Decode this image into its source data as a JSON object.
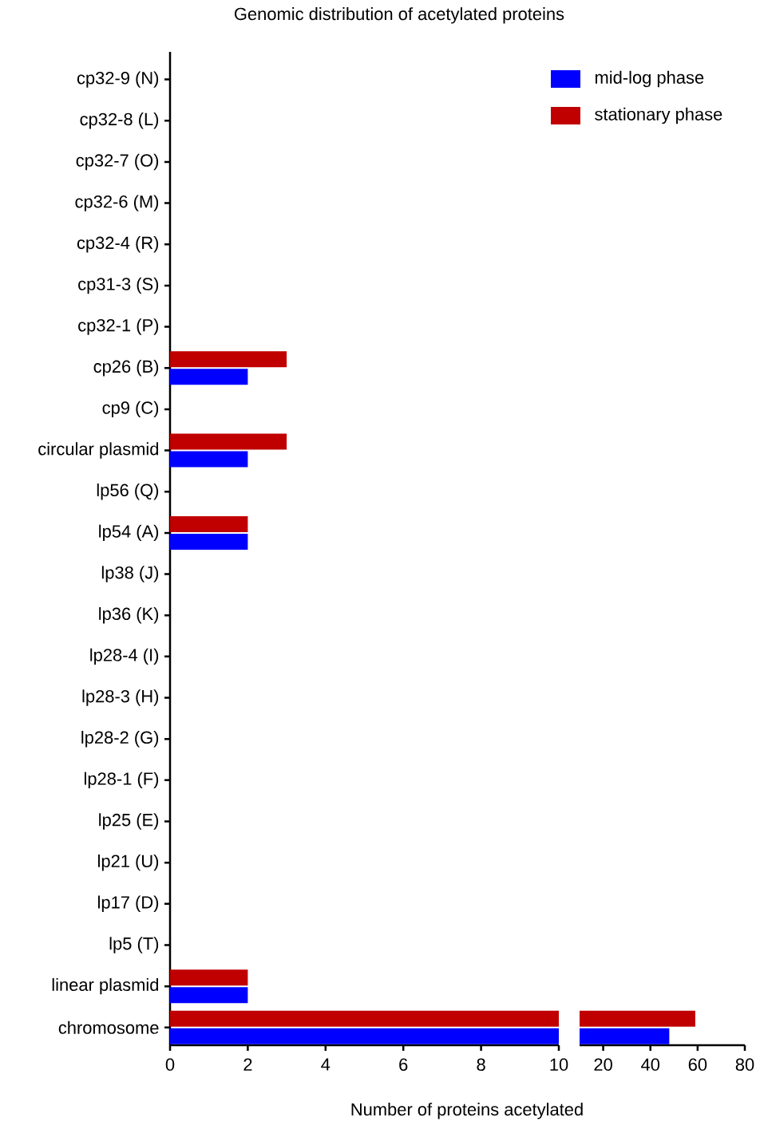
{
  "chart_data": [
    {
      "type": "bar",
      "orientation": "horizontal",
      "title": "Genomic distribution of acetylated proteins",
      "xlabel": "Number of proteins acetylated",
      "legend": "top right",
      "categories": [
        "cp32-9 (N)",
        "cp32-8 (L)",
        "cp32-7 (O)",
        "cp32-6 (M)",
        "cp32-4 (R)",
        "cp31-3 (S)",
        "cp32-1 (P)",
        "cp26 (B)",
        "cp9 (C)",
        "circular plasmid",
        "lp56 (Q)",
        "lp54 (A)",
        "lp38 (J)",
        "lp36 (K)",
        "lp28-4 (I)",
        "lp28-3 (H)",
        "lp28-2 (G)",
        "lp28-1 (F)",
        "lp25 (E)",
        "lp21 (U)",
        "lp17 (D)",
        "lp5 (T)",
        "linear plasmid",
        "chromosome"
      ],
      "series": [
        {
          "name": "mid-log phase",
          "color": "#0000ff",
          "values": [
            0,
            0,
            0,
            0,
            0,
            0,
            0,
            2,
            0,
            2,
            0,
            2,
            0,
            0,
            0,
            0,
            0,
            0,
            0,
            0,
            0,
            0,
            2,
            10
          ]
        },
        {
          "name": "stationary phase",
          "color": "#c00000",
          "values": [
            0,
            0,
            0,
            0,
            0,
            0,
            0,
            3,
            0,
            3,
            0,
            2,
            0,
            0,
            0,
            0,
            0,
            0,
            0,
            0,
            0,
            0,
            2,
            10
          ]
        }
      ],
      "xlim": [
        0,
        10
      ],
      "xticks": [
        0,
        2,
        4,
        6,
        8,
        10
      ]
    },
    {
      "type": "bar",
      "orientation": "horizontal",
      "tick_labels": "x",
      "categories": [
        null,
        null,
        null,
        null,
        null,
        null,
        null,
        null,
        null,
        null,
        null,
        null,
        null,
        null,
        null,
        null,
        null,
        null,
        null,
        null,
        null,
        null,
        null,
        null
      ],
      "series": [
        {
          "color": "#0000ff",
          "values": [
            null,
            null,
            null,
            null,
            null,
            null,
            null,
            null,
            null,
            null,
            null,
            null,
            null,
            null,
            null,
            null,
            null,
            null,
            null,
            null,
            null,
            null,
            null,
            48
          ]
        },
        {
          "color": "#c00000",
          "values": [
            null,
            null,
            null,
            null,
            null,
            null,
            null,
            null,
            null,
            null,
            null,
            null,
            null,
            null,
            null,
            null,
            null,
            null,
            null,
            null,
            null,
            null,
            null,
            59
          ]
        }
      ],
      "xlim": [
        10,
        80
      ],
      "xticks": [
        20,
        40,
        60,
        80
      ]
    }
  ]
}
